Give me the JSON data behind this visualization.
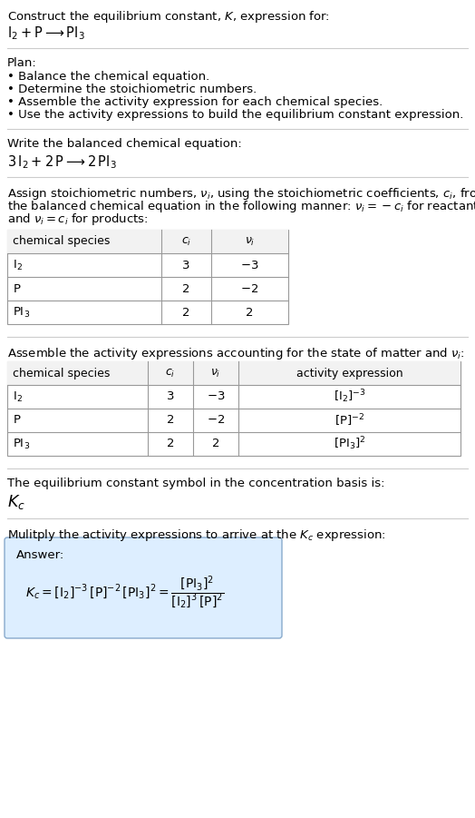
{
  "title_line1": "Construct the equilibrium constant, $K$, expression for:",
  "title_line2": "$\\mathrm{I_2 + P \\longrightarrow PI_3}$",
  "plan_header": "Plan:",
  "plan_items": [
    "• Balance the chemical equation.",
    "• Determine the stoichiometric numbers.",
    "• Assemble the activity expression for each chemical species.",
    "• Use the activity expressions to build the equilibrium constant expression."
  ],
  "balanced_header": "Write the balanced chemical equation:",
  "balanced_eq": "$\\mathrm{3\\,I_2 + 2\\,P \\longrightarrow 2\\,PI_3}$",
  "stoich_header_parts": [
    "Assign stoichiometric numbers, $\\nu_i$, using the stoichiometric coefficients, $c_i$, from",
    "the balanced chemical equation in the following manner: $\\nu_i = -c_i$ for reactants",
    "and $\\nu_i = c_i$ for products:"
  ],
  "table1_headers": [
    "chemical species",
    "$c_i$",
    "$\\nu_i$"
  ],
  "table1_rows": [
    [
      "$\\mathrm{I_2}$",
      "3",
      "$-3$"
    ],
    [
      "$\\mathrm{P}$",
      "2",
      "$-2$"
    ],
    [
      "$\\mathrm{PI_3}$",
      "2",
      "2"
    ]
  ],
  "activity_header": "Assemble the activity expressions accounting for the state of matter and $\\nu_i$:",
  "table2_headers": [
    "chemical species",
    "$c_i$",
    "$\\nu_i$",
    "activity expression"
  ],
  "table2_rows": [
    [
      "$\\mathrm{I_2}$",
      "3",
      "$-3$",
      "$[\\mathrm{I_2}]^{-3}$"
    ],
    [
      "$\\mathrm{P}$",
      "2",
      "$-2$",
      "$[\\mathrm{P}]^{-2}$"
    ],
    [
      "$\\mathrm{PI_3}$",
      "2",
      "2",
      "$[\\mathrm{PI_3}]^{2}$"
    ]
  ],
  "kc_header": "The equilibrium constant symbol in the concentration basis is:",
  "kc_symbol": "$K_c$",
  "multiply_header": "Mulitply the activity expressions to arrive at the $K_c$ expression:",
  "answer_label": "Answer:",
  "bg_color": "#ffffff",
  "text_color": "#000000",
  "table_border_color": "#999999",
  "answer_box_color": "#ddeeff",
  "answer_box_border": "#88aacc",
  "font_size": 9.5
}
